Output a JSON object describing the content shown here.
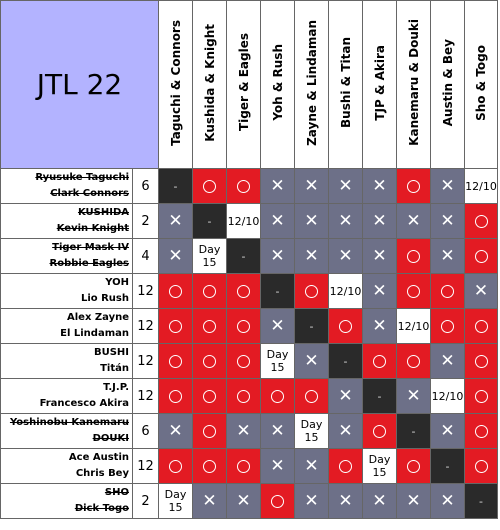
{
  "title": "JTL 22",
  "columns": [
    "Taguchi & Connors",
    "Kushida & Knight",
    "Tiger & Eagles",
    "Yoh & Rush",
    "Zayne & Lindaman",
    "Bushi & Titan",
    "TJP & Akira",
    "Kanemaru & Douki",
    "Austin & Bey",
    "Sho & Togo"
  ],
  "rows": [
    {
      "names": [
        "Ryusuke Taguchi",
        "Clark Connors"
      ],
      "eliminated": true,
      "points": "6",
      "cells": [
        "self",
        "win",
        "win",
        "loss",
        "loss",
        "loss",
        "loss",
        "win",
        "loss",
        "12/10"
      ]
    },
    {
      "names": [
        "KUSHIDA",
        "Kevin Knight"
      ],
      "eliminated": true,
      "points": "2",
      "cells": [
        "loss",
        "self",
        "12/10",
        "loss",
        "loss",
        "loss",
        "loss",
        "loss",
        "loss",
        "win"
      ]
    },
    {
      "names": [
        "Tiger Mask IV",
        "Robbie Eagles"
      ],
      "eliminated": true,
      "points": "4",
      "cells": [
        "loss",
        "Day 15",
        "self",
        "loss",
        "loss",
        "loss",
        "loss",
        "win",
        "loss",
        "win"
      ]
    },
    {
      "names": [
        "YOH",
        "Lio Rush"
      ],
      "eliminated": false,
      "points": "12",
      "cells": [
        "win",
        "win",
        "win",
        "self",
        "win",
        "12/10",
        "loss",
        "win",
        "win",
        "loss"
      ]
    },
    {
      "names": [
        "Alex Zayne",
        "El Lindaman"
      ],
      "eliminated": false,
      "points": "12",
      "cells": [
        "win",
        "win",
        "win",
        "loss",
        "self",
        "win",
        "loss",
        "12/10",
        "win",
        "win"
      ]
    },
    {
      "names": [
        "BUSHI",
        "Titán"
      ],
      "eliminated": false,
      "points": "12",
      "cells": [
        "win",
        "win",
        "win",
        "Day 15",
        "loss",
        "self",
        "win",
        "win",
        "loss",
        "win"
      ]
    },
    {
      "names": [
        "T.J.P.",
        "Francesco Akira"
      ],
      "eliminated": false,
      "points": "12",
      "cells": [
        "win",
        "win",
        "win",
        "win",
        "win",
        "loss",
        "self",
        "loss",
        "12/10",
        "win"
      ]
    },
    {
      "names": [
        "Yoshinobu Kanemaru",
        "DOUKI"
      ],
      "eliminated": true,
      "points": "6",
      "cells": [
        "loss",
        "win",
        "loss",
        "loss",
        "Day 15",
        "loss",
        "win",
        "self",
        "loss",
        "win"
      ]
    },
    {
      "names": [
        "Ace Austin",
        "Chris Bey"
      ],
      "eliminated": false,
      "points": "12",
      "cells": [
        "win",
        "win",
        "win",
        "loss",
        "loss",
        "win",
        "Day 15",
        "win",
        "self",
        "win"
      ]
    },
    {
      "names": [
        "SHO",
        "Dick Togo"
      ],
      "eliminated": true,
      "points": "2",
      "cells": [
        "Day 15",
        "loss",
        "loss",
        "win",
        "loss",
        "loss",
        "loss",
        "loss",
        "loss",
        "self"
      ]
    }
  ],
  "legend": {
    "win": "O",
    "loss": "✕",
    "self": "-"
  },
  "colors": {
    "win": "#e31b23",
    "loss": "#6d7088",
    "self": "#2a2a2a",
    "header": "#b3b3ff"
  }
}
